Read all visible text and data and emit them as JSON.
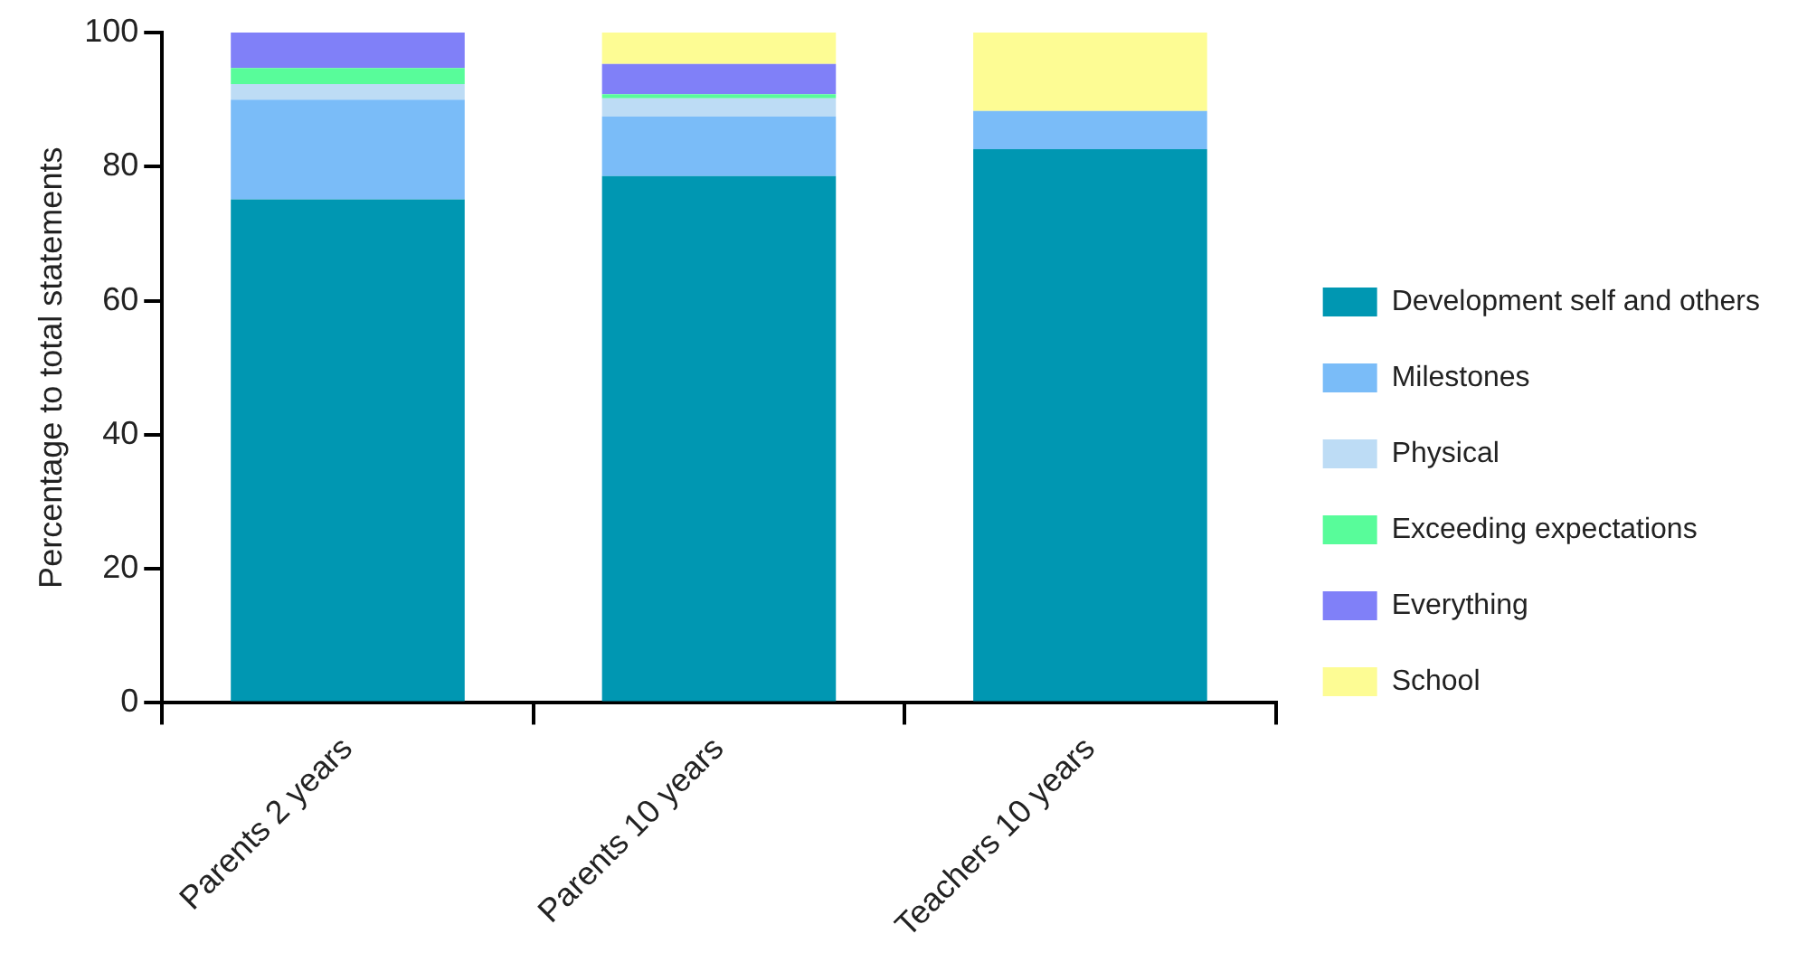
{
  "chart_data": {
    "type": "bar",
    "stacked": true,
    "ylabel": "Percentage to total statements",
    "categories": [
      "Parents 2 years",
      "Parents 10 years",
      "Teachers 10 years"
    ],
    "series": [
      {
        "name": "Development self and others",
        "color": "#0097b2",
        "values": [
          75.1,
          78.6,
          82.6
        ]
      },
      {
        "name": "Milestones",
        "color": "#7abcf8",
        "values": [
          14.9,
          8.9,
          5.7
        ]
      },
      {
        "name": "Physical",
        "color": "#bddcf5",
        "values": [
          2.3,
          2.7,
          0
        ]
      },
      {
        "name": "Exceeding expectations",
        "color": "#58fc9a",
        "values": [
          2.4,
          0.6,
          0
        ]
      },
      {
        "name": "Everything",
        "color": "#8080f8",
        "values": [
          5.3,
          4.5,
          0
        ]
      },
      {
        "name": "School",
        "color": "#fdfc94",
        "values": [
          0,
          4.7,
          11.7
        ]
      }
    ],
    "ylim": [
      0,
      100
    ],
    "yticks": [
      0,
      20,
      40,
      60,
      80,
      100
    ],
    "grid": false,
    "legend": "right"
  }
}
